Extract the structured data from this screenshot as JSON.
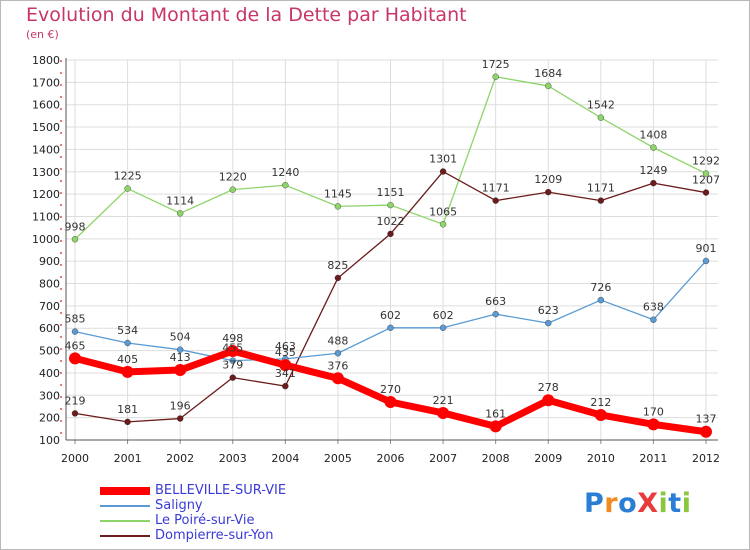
{
  "header": {
    "title": "Evolution du Montant de la Dette par Habitant",
    "unit": "(en €)"
  },
  "logo": {
    "text": "ProXiti",
    "colors": [
      "#2a7fd4",
      "#f08c1e",
      "#2a7fd4",
      "#e83c3c",
      "#8cc63e",
      "#2a7fd4",
      "#8cc63e"
    ]
  },
  "chart_data": {
    "type": "line",
    "categories": [
      "2000",
      "2001",
      "2002",
      "2003",
      "2004",
      "2005",
      "2006",
      "2007",
      "2008",
      "2009",
      "2010",
      "2011",
      "2012"
    ],
    "ylim": [
      100,
      1800
    ],
    "yticks": [
      100,
      200,
      300,
      400,
      500,
      600,
      700,
      800,
      900,
      1000,
      1100,
      1200,
      1300,
      1400,
      1500,
      1600,
      1700,
      1800
    ],
    "grid": true,
    "legend_position": "bottom-left",
    "series": [
      {
        "name": "Le Poiré-sur-Vie",
        "color": "#8fd46a",
        "width": 1.3,
        "markers": true,
        "values": [
          998,
          1225,
          1114,
          1220,
          1240,
          1145,
          1151,
          1065,
          1725,
          1684,
          1542,
          1408,
          1292
        ]
      },
      {
        "name": "Dompierre-sur-Yon",
        "color": "#6b1b1b",
        "width": 1.3,
        "markers": true,
        "values": [
          219,
          181,
          196,
          379,
          341,
          825,
          1022,
          1301,
          1171,
          1209,
          1171,
          1249,
          1207
        ]
      },
      {
        "name": "Saligny",
        "color": "#5a9bd4",
        "width": 1.3,
        "markers": true,
        "values": [
          585,
          534,
          504,
          455,
          463,
          488,
          602,
          602,
          663,
          623,
          726,
          638,
          901
        ]
      },
      {
        "name": "BELLEVILLE-SUR-VIE",
        "color": "#ff0000",
        "width": 7,
        "markers": true,
        "values": [
          465,
          405,
          413,
          498,
          435,
          376,
          270,
          221,
          161,
          278,
          212,
          170,
          137
        ]
      }
    ],
    "legend_order": [
      "BELLEVILLE-SUR-VIE",
      "Saligny",
      "Le Poiré-sur-Vie",
      "Dompierre-sur-Yon"
    ]
  }
}
